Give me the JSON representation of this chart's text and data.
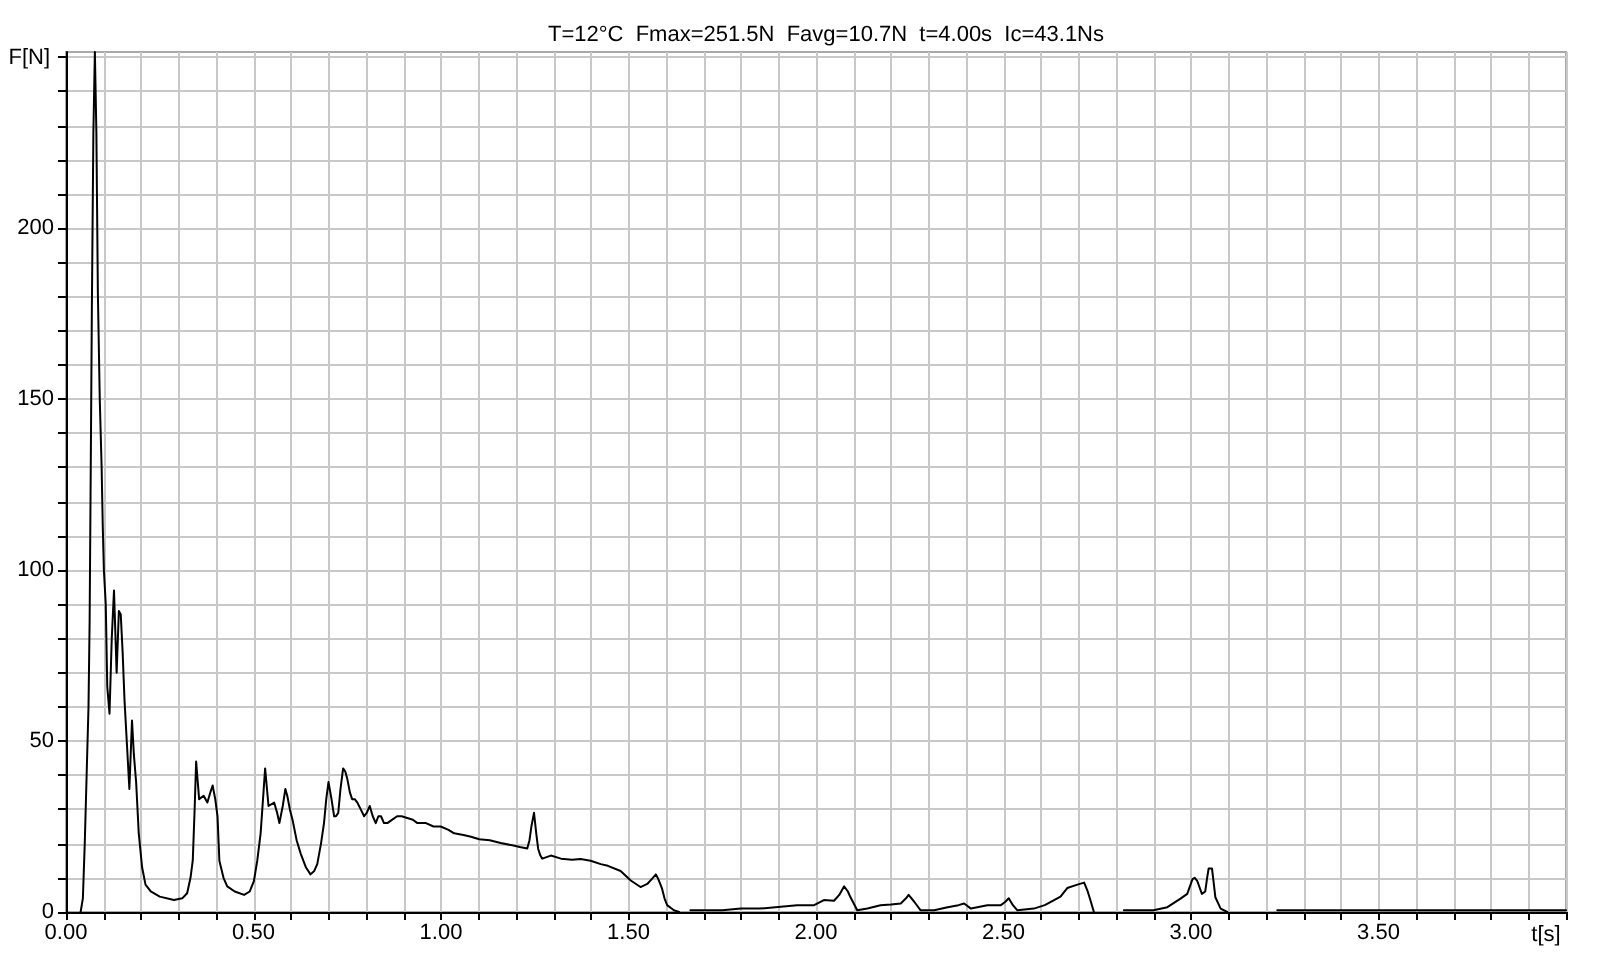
{
  "chart_data": {
    "type": "line",
    "title": "T=12°C  Fmax=251.5N  Favg=10.7N  t=4.00s  Ic=43.1Ns",
    "xlabel": "t[s]",
    "ylabel": "F[N]",
    "color": "#000000",
    "x": [
      0.039,
      0.045,
      0.05,
      0.055,
      0.06,
      0.063,
      0.066,
      0.069,
      0.073,
      0.077,
      0.081,
      0.085,
      0.09,
      0.095,
      0.098,
      0.101,
      0.106,
      0.11,
      0.116,
      0.122,
      0.128,
      0.135,
      0.141,
      0.146,
      0.151,
      0.156,
      0.163,
      0.169,
      0.176,
      0.181,
      0.187,
      0.194,
      0.203,
      0.212,
      0.226,
      0.25,
      0.288,
      0.31,
      0.323,
      0.332,
      0.338,
      0.343,
      0.347,
      0.355,
      0.367,
      0.377,
      0.385,
      0.391,
      0.398,
      0.404,
      0.409,
      0.42,
      0.43,
      0.45,
      0.475,
      0.49,
      0.501,
      0.51,
      0.519,
      0.526,
      0.531,
      0.54,
      0.555,
      0.563,
      0.569,
      0.578,
      0.585,
      0.59,
      0.597,
      0.604,
      0.615,
      0.626,
      0.64,
      0.652,
      0.662,
      0.67,
      0.68,
      0.688,
      0.694,
      0.7,
      0.708,
      0.715,
      0.72,
      0.726,
      0.732,
      0.739,
      0.745,
      0.75,
      0.757,
      0.763,
      0.77,
      0.777,
      0.786,
      0.795,
      0.802,
      0.81,
      0.818,
      0.826,
      0.833,
      0.84,
      0.848,
      0.857,
      0.87,
      0.883,
      0.895,
      0.91,
      0.925,
      0.937,
      0.96,
      0.98,
      0.999,
      1.02,
      1.035,
      1.06,
      1.08,
      1.102,
      1.13,
      1.159,
      1.19,
      1.21,
      1.23,
      1.236,
      1.241,
      1.248,
      1.254,
      1.259,
      1.265,
      1.27,
      1.293,
      1.32,
      1.35,
      1.372,
      1.399,
      1.426,
      1.445,
      1.479,
      1.506,
      1.532,
      1.55,
      1.565,
      1.573,
      1.58,
      1.589,
      1.596,
      1.603,
      1.621,
      1.635,
      1.65,
      1.665,
      1.75,
      1.8,
      1.85,
      1.906,
      1.95,
      1.995,
      2.021,
      2.048,
      2.062,
      2.075,
      2.085,
      2.092,
      2.11,
      2.137,
      2.172,
      2.2,
      2.226,
      2.24,
      2.247,
      2.262,
      2.279,
      2.315,
      2.351,
      2.38,
      2.395,
      2.413,
      2.457,
      2.493,
      2.505,
      2.514,
      2.525,
      2.537,
      2.581,
      2.61,
      2.635,
      2.652,
      2.67,
      2.697,
      2.715,
      2.724,
      2.733,
      2.741,
      2.78,
      2.821,
      2.9,
      2.937,
      2.972,
      2.99,
      3.004,
      3.01,
      3.017,
      3.029,
      3.038,
      3.043,
      3.047,
      3.056,
      3.06,
      3.065,
      3.079,
      3.097,
      3.16,
      3.23,
      4.0
    ],
    "values": [
      0,
      4,
      20,
      40,
      60,
      85,
      130,
      177,
      228,
      251.5,
      228,
      181,
      150,
      130,
      113,
      100,
      90,
      66,
      58,
      80,
      94,
      70,
      88,
      87,
      76,
      62,
      48,
      36,
      56,
      46,
      38,
      23,
      13,
      8,
      6,
      4.5,
      3.5,
      4,
      5.5,
      10,
      15,
      30,
      44,
      33,
      34,
      32,
      35,
      37,
      33,
      28,
      15,
      10,
      7.5,
      6,
      5,
      6,
      9,
      15,
      23,
      34,
      42,
      31,
      32,
      29,
      26,
      31,
      36,
      34,
      30,
      27,
      21,
      17,
      13,
      11,
      12,
      14,
      20,
      26,
      33,
      38,
      33,
      28,
      28,
      29,
      36,
      42,
      41,
      39,
      35,
      33,
      33,
      32,
      30,
      28,
      29,
      31,
      28,
      26,
      28,
      28,
      26,
      26,
      27,
      28,
      28,
      27.5,
      27,
      26,
      26,
      25,
      25,
      24,
      23,
      22.5,
      22,
      21.3,
      21,
      20.2,
      19.5,
      19,
      18.6,
      21,
      25,
      29,
      23,
      18.5,
      16.5,
      15.6,
      16.5,
      15.6,
      15.3,
      15.5,
      15,
      14,
      13.5,
      12,
      9.2,
      7.3,
      8.2,
      10,
      11,
      9.5,
      7,
      4,
      2,
      0.5,
      0,
      null,
      0.5,
      0.5,
      1,
      1,
      1.5,
      2,
      2,
      3.5,
      3.3,
      5,
      7.5,
      6,
      4.3,
      0.5,
      1,
      2,
      2.2,
      2.5,
      4,
      5,
      3,
      0.5,
      0.5,
      1.4,
      2,
      2.5,
      1,
      2,
      2,
      3,
      4,
      2,
      0.5,
      1,
      2,
      3.5,
      4.5,
      7,
      8,
      8.6,
      6.2,
      3,
      0,
      null,
      0.5,
      0.5,
      1.4,
      3.9,
      5.3,
      9.6,
      10,
      9,
      5.3,
      6,
      10,
      12.7,
      12.7,
      9,
      4.3,
      1,
      0,
      null,
      0.5,
      0.5
    ],
    "xlim": [
      0,
      4.0
    ],
    "ylim": [
      0,
      251.5
    ],
    "xticks": [
      {
        "value": 0,
        "label": "0.00"
      },
      {
        "value": 0.1,
        "label": null
      },
      {
        "value": 0.2,
        "label": null
      },
      {
        "value": 0.3,
        "label": null
      },
      {
        "value": 0.4,
        "label": null
      },
      {
        "value": 0.5,
        "label": "0.50"
      },
      {
        "value": 0.6,
        "label": null
      },
      {
        "value": 0.7,
        "label": null
      },
      {
        "value": 0.8,
        "label": null
      },
      {
        "value": 0.9,
        "label": null
      },
      {
        "value": 1.0,
        "label": "1.00"
      },
      {
        "value": 1.1,
        "label": null
      },
      {
        "value": 1.2,
        "label": null
      },
      {
        "value": 1.3,
        "label": null
      },
      {
        "value": 1.4,
        "label": null
      },
      {
        "value": 1.5,
        "label": "1.50"
      },
      {
        "value": 1.6,
        "label": null
      },
      {
        "value": 1.7,
        "label": null
      },
      {
        "value": 1.8,
        "label": null
      },
      {
        "value": 1.9,
        "label": null
      },
      {
        "value": 2.0,
        "label": "2.00"
      },
      {
        "value": 2.1,
        "label": null
      },
      {
        "value": 2.2,
        "label": null
      },
      {
        "value": 2.3,
        "label": null
      },
      {
        "value": 2.4,
        "label": null
      },
      {
        "value": 2.5,
        "label": "2.50"
      },
      {
        "value": 2.6,
        "label": null
      },
      {
        "value": 2.7,
        "label": null
      },
      {
        "value": 2.8,
        "label": null
      },
      {
        "value": 2.9,
        "label": null
      },
      {
        "value": 3.0,
        "label": "3.00"
      },
      {
        "value": 3.1,
        "label": null
      },
      {
        "value": 3.2,
        "label": null
      },
      {
        "value": 3.3,
        "label": null
      },
      {
        "value": 3.4,
        "label": null
      },
      {
        "value": 3.5,
        "label": "3.50"
      },
      {
        "value": 3.6,
        "label": null
      },
      {
        "value": 3.7,
        "label": null
      },
      {
        "value": 3.8,
        "label": null
      },
      {
        "value": 3.9,
        "label": null
      },
      {
        "value": 4.0,
        "label": null
      }
    ],
    "yticks": [
      0,
      {
        "value": 10,
        "label": null
      },
      {
        "value": 20,
        "label": null
      },
      {
        "value": 30,
        "label": null
      },
      {
        "value": 40,
        "label": null
      },
      50,
      {
        "value": 60,
        "label": null
      },
      {
        "value": 70,
        "label": null
      },
      {
        "value": 80,
        "label": null
      },
      {
        "value": 90,
        "label": null
      },
      100,
      {
        "value": 110,
        "label": null
      },
      {
        "value": 120,
        "label": null
      },
      {
        "value": 130,
        "label": null
      },
      {
        "value": 140,
        "label": null
      },
      150,
      {
        "value": 160,
        "label": null
      },
      {
        "value": 170,
        "label": null
      },
      {
        "value": 180,
        "label": null
      },
      {
        "value": 190,
        "label": null
      },
      200,
      {
        "value": 210,
        "label": null
      },
      {
        "value": 220,
        "label": null
      },
      {
        "value": 230,
        "label": null
      },
      {
        "value": 240,
        "label": null
      },
      {
        "value": 250,
        "label": null
      }
    ],
    "grid": true
  }
}
